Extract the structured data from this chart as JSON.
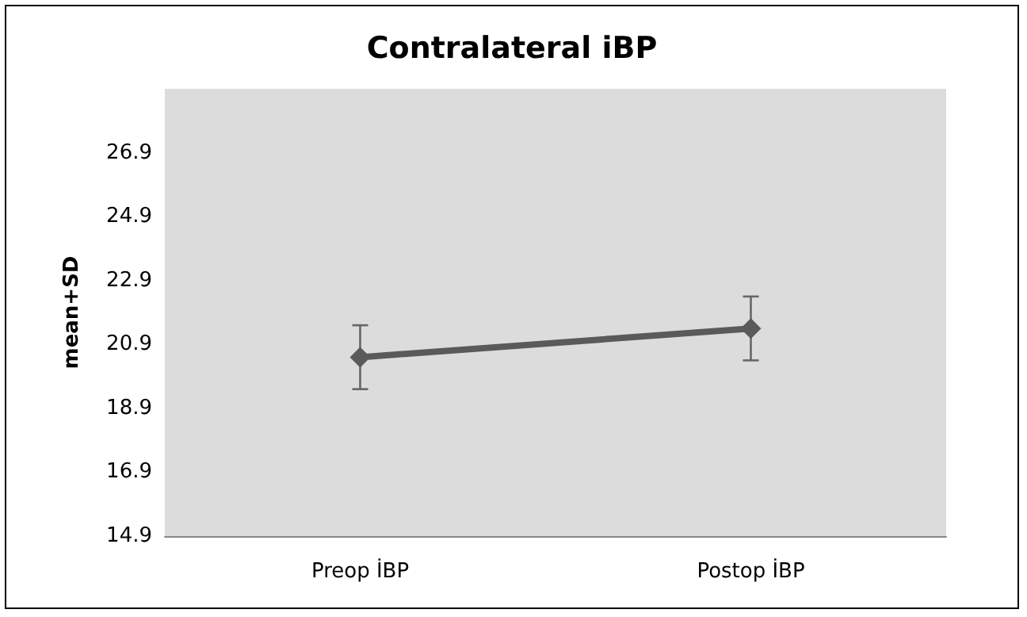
{
  "chart_data": {
    "type": "line",
    "title": "Contralateral iBP",
    "ylabel": "mean+SD",
    "categories": [
      "Preop İBP",
      "Postop İBP"
    ],
    "series": [
      {
        "color": "#5a5a5a",
        "values": [
          20.5,
          21.4
        ],
        "errors": [
          1.0,
          1.0
        ]
      }
    ],
    "ylim": [
      14.9,
      28.9
    ],
    "yticks": [
      14.9,
      16.9,
      18.9,
      20.9,
      22.9,
      24.9,
      26.9
    ],
    "grid": false,
    "marker": "diamond",
    "line_style": "solid"
  }
}
